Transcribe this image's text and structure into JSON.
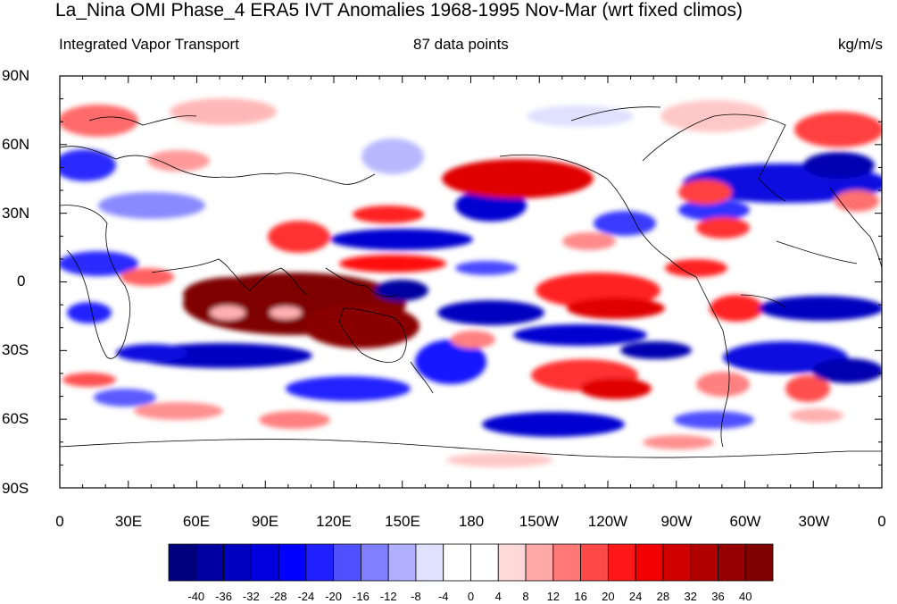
{
  "header": {
    "title": "La_Nina OMI Phase_4 ERA5 IVT Anomalies 1968-1995 Nov-Mar (wrt fixed climos)",
    "left_string": "Integrated Vapor Transport",
    "center_string": "87 data points",
    "right_string": "kg/m/s"
  },
  "map": {
    "lat_labels": [
      "90N",
      "60N",
      "30N",
      "0",
      "30S",
      "60S",
      "90S"
    ],
    "lon_labels": [
      "0",
      "30E",
      "60E",
      "90E",
      "120E",
      "150E",
      "180",
      "150W",
      "120W",
      "90W",
      "60W",
      "30W",
      "0"
    ],
    "projection": "cylindrical equidistant",
    "lon_range": [
      0,
      360
    ],
    "lat_range": [
      -90,
      90
    ]
  },
  "colorbar": {
    "levels": [
      "-40",
      "-36",
      "-32",
      "-28",
      "-24",
      "-20",
      "-16",
      "-12",
      "-8",
      "-4",
      "0",
      "4",
      "8",
      "12",
      "16",
      "20",
      "24",
      "28",
      "32",
      "36",
      "40"
    ],
    "colors": [
      "#00007f",
      "#0000a0",
      "#0000c0",
      "#0000df",
      "#0000ff",
      "#2020ff",
      "#5050ff",
      "#8080ff",
      "#b0b0ff",
      "#e0e0ff",
      "#ffffff",
      "#ffffff",
      "#ffd8d8",
      "#ffa8a8",
      "#ff7878",
      "#ff4848",
      "#ff1818",
      "#f00000",
      "#d00000",
      "#b00000",
      "#960000",
      "#7f0000"
    ]
  }
}
